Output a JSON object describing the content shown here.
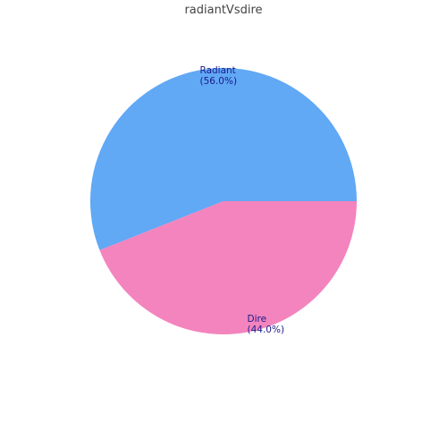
{
  "chart_data": {
    "type": "pie",
    "title": "radiantVsdire",
    "slices": [
      {
        "label": "Radiant",
        "value": 56.0,
        "percent_text": "(56.0%)",
        "color": "#61a8f5"
      },
      {
        "label": "Dire",
        "value": 44.0,
        "percent_text": "(44.0%)",
        "color": "#f384bd"
      }
    ],
    "label_color": "#1a1a8c",
    "legend": "none"
  }
}
